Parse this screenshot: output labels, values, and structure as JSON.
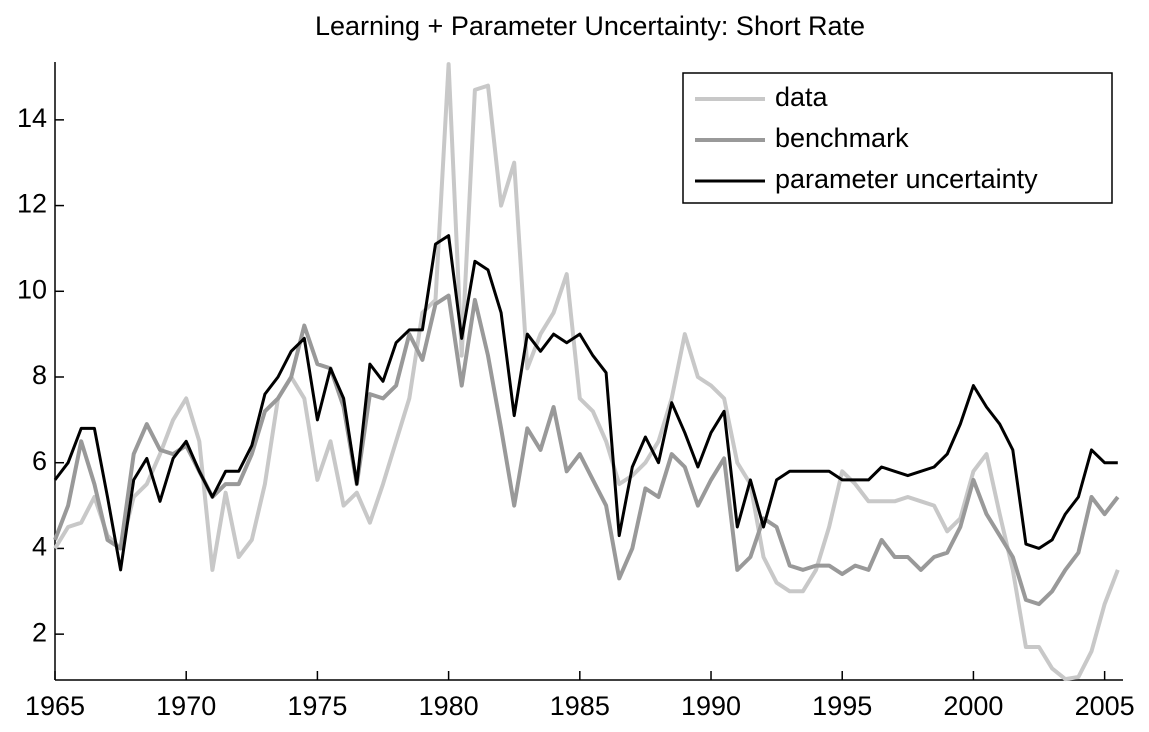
{
  "chart_data": {
    "type": "line",
    "title": "Learning + Parameter Uncertainty: Short Rate",
    "x": [
      1965,
      1965.5,
      1966,
      1966.5,
      1967,
      1967.5,
      1968,
      1968.5,
      1969,
      1969.5,
      1970,
      1970.5,
      1971,
      1971.5,
      1972,
      1972.5,
      1973,
      1973.5,
      1974,
      1974.5,
      1975,
      1975.5,
      1976,
      1976.5,
      1977,
      1977.5,
      1978,
      1978.5,
      1979,
      1979.5,
      1980,
      1980.5,
      1981,
      1981.5,
      1982,
      1982.5,
      1983,
      1983.5,
      1984,
      1984.5,
      1985,
      1985.5,
      1986,
      1986.5,
      1987,
      1987.5,
      1988,
      1988.5,
      1989,
      1989.5,
      1990,
      1990.5,
      1991,
      1991.5,
      1992,
      1992.5,
      1993,
      1993.5,
      1994,
      1994.5,
      1995,
      1995.5,
      1996,
      1996.5,
      1997,
      1997.5,
      1998,
      1998.5,
      1999,
      1999.5,
      2000,
      2000.5,
      2001,
      2001.5,
      2002,
      2002.5,
      2003,
      2003.5,
      2004,
      2004.5,
      2005,
      2005.5
    ],
    "series": [
      {
        "name": "data",
        "color": "#c8c8c8",
        "values": [
          4.0,
          4.5,
          4.6,
          5.2,
          4.3,
          4.0,
          5.2,
          5.5,
          6.2,
          7.0,
          7.5,
          6.5,
          3.5,
          5.3,
          3.8,
          4.2,
          5.5,
          7.5,
          8.0,
          7.5,
          5.6,
          6.5,
          5.0,
          5.3,
          4.6,
          5.5,
          6.5,
          7.5,
          9.5,
          9.8,
          15.3,
          8.5,
          14.7,
          14.8,
          12.0,
          13.0,
          8.2,
          9.0,
          9.5,
          10.4,
          7.5,
          7.2,
          6.5,
          5.5,
          5.7,
          6.0,
          6.5,
          7.5,
          9.0,
          8.0,
          7.8,
          7.5,
          6.0,
          5.5,
          3.8,
          3.2,
          3.0,
          3.0,
          3.5,
          4.5,
          5.8,
          5.5,
          5.1,
          5.1,
          5.1,
          5.2,
          5.1,
          5.0,
          4.4,
          4.7,
          5.8,
          6.2,
          4.8,
          3.5,
          1.7,
          1.7,
          1.2,
          0.95,
          1.0,
          1.6,
          2.7,
          3.5
        ]
      },
      {
        "name": "benchmark",
        "color": "#999999",
        "values": [
          4.2,
          5.0,
          6.5,
          5.5,
          4.2,
          4.0,
          6.2,
          6.9,
          6.3,
          6.2,
          6.4,
          5.8,
          5.2,
          5.5,
          5.5,
          6.2,
          7.2,
          7.5,
          8.0,
          9.2,
          8.3,
          8.2,
          7.3,
          5.5,
          7.6,
          7.5,
          7.8,
          9.0,
          8.4,
          9.7,
          9.9,
          7.8,
          9.8,
          8.5,
          6.8,
          5.0,
          6.8,
          6.3,
          7.3,
          5.8,
          6.2,
          5.6,
          5.0,
          3.3,
          4.0,
          5.4,
          5.2,
          6.2,
          5.9,
          5.0,
          5.6,
          6.1,
          3.5,
          3.8,
          4.7,
          4.5,
          3.6,
          3.5,
          3.6,
          3.6,
          3.4,
          3.6,
          3.5,
          4.2,
          3.8,
          3.8,
          3.5,
          3.8,
          3.9,
          4.5,
          5.6,
          4.8,
          4.3,
          3.8,
          2.8,
          2.7,
          3.0,
          3.5,
          3.9,
          5.2,
          4.8,
          5.2
        ]
      },
      {
        "name": "parameter uncertainty",
        "color": "#000000",
        "values": [
          5.6,
          6.0,
          6.8,
          6.8,
          5.2,
          3.5,
          5.6,
          6.1,
          5.1,
          6.1,
          6.5,
          5.8,
          5.2,
          5.8,
          5.8,
          6.4,
          7.6,
          8.0,
          8.6,
          8.9,
          7.0,
          8.2,
          7.5,
          5.5,
          8.3,
          7.9,
          8.8,
          9.1,
          9.1,
          11.1,
          11.3,
          8.9,
          10.7,
          10.5,
          9.5,
          7.1,
          9.0,
          8.6,
          9.0,
          8.8,
          9.0,
          8.5,
          8.1,
          4.3,
          5.9,
          6.6,
          6.0,
          7.4,
          6.7,
          5.9,
          6.7,
          7.2,
          4.5,
          5.6,
          4.5,
          5.6,
          5.8,
          5.8,
          5.8,
          5.8,
          5.6,
          5.6,
          5.6,
          5.9,
          5.8,
          5.7,
          5.8,
          5.9,
          6.2,
          6.9,
          7.8,
          7.3,
          6.9,
          6.3,
          4.1,
          4.0,
          4.2,
          4.8,
          5.2,
          6.3,
          6.0,
          6.0
        ]
      }
    ],
    "xlim": [
      1965,
      2005.7
    ],
    "ylim": [
      0.93,
      15.35
    ],
    "xticks": [
      1965,
      1970,
      1975,
      1980,
      1985,
      1990,
      1995,
      2000,
      2005
    ],
    "yticks": [
      2,
      4,
      6,
      8,
      10,
      12,
      14
    ],
    "legend": "upper right"
  }
}
